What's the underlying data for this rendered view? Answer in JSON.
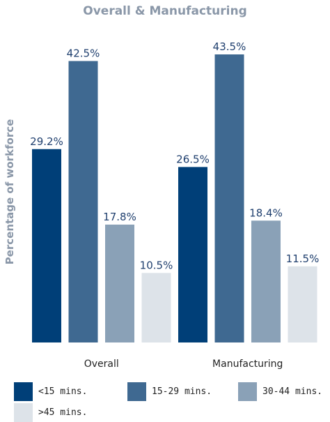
{
  "chart_data": {
    "type": "bar",
    "title": "Overall & Manufacturing",
    "ylabel": "Percentage of workforce",
    "xlabel": "",
    "categories": [
      "Overall",
      "Manufacturing"
    ],
    "series": [
      {
        "name": "<15 mins.",
        "values": [
          29.2,
          26.5
        ],
        "labels": [
          "29.2%",
          "26.5%"
        ],
        "color": "#003f78"
      },
      {
        "name": "15-29 mins.",
        "values": [
          42.5,
          43.5
        ],
        "labels": [
          "42.5%",
          "43.5%"
        ],
        "color": "#3f6991"
      },
      {
        "name": "30-44 mins.",
        "values": [
          17.8,
          18.4
        ],
        "labels": [
          "17.8%",
          "18.4%"
        ],
        "color": "#8aa1b7"
      },
      {
        "name": ">45 mins.",
        "values": [
          10.5,
          11.5
        ],
        "labels": [
          "10.5%",
          "11.5%"
        ],
        "color": "#dde3e9"
      }
    ],
    "ylim": [
      0,
      43.5
    ],
    "grid": false,
    "legend_position": "bottom"
  }
}
